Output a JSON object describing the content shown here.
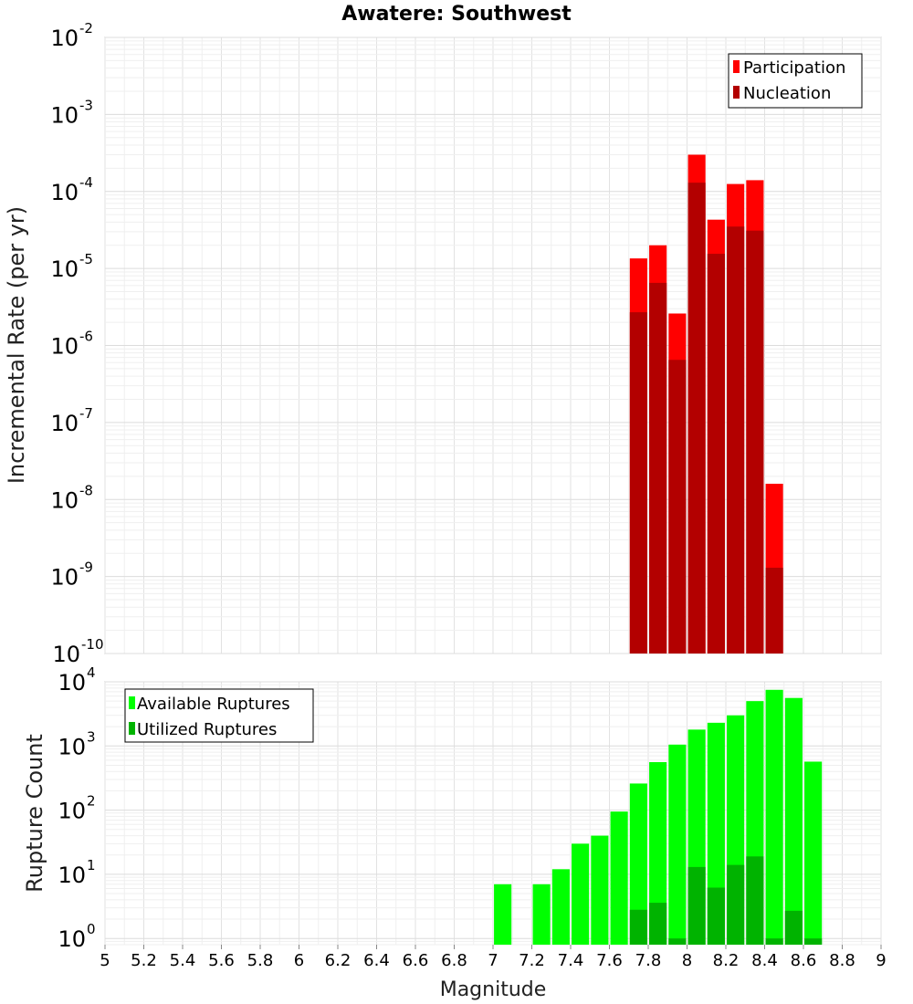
{
  "chart_data": [
    {
      "type": "bar",
      "title": "Awatere: Southwest",
      "xlabel": "",
      "ylabel": "Incremental Rate (per yr)",
      "y_scale": "log",
      "ylim": [
        1e-10,
        0.01
      ],
      "xlim": [
        5,
        9
      ],
      "grid": true,
      "legend_position": "top-right",
      "x": [
        7.75,
        7.85,
        7.95,
        8.05,
        8.15,
        8.25,
        8.35,
        8.45
      ],
      "series": [
        {
          "name": "Participation",
          "color": "#ff0000",
          "values": [
            1.35e-05,
            2e-05,
            2.6e-06,
            0.0003,
            4.3e-05,
            0.000125,
            0.00014,
            1.6e-08
          ]
        },
        {
          "name": "Nucleation",
          "color": "#b30000",
          "values": [
            2.7e-06,
            6.5e-06,
            6.5e-07,
            0.00013,
            1.55e-05,
            3.5e-05,
            3.1e-05,
            1.3e-09
          ]
        }
      ],
      "y_ticks": [
        {
          "base": "10",
          "exp": "-2",
          "value": 0.01
        },
        {
          "base": "10",
          "exp": "-3",
          "value": 0.001
        },
        {
          "base": "10",
          "exp": "-4",
          "value": 0.0001
        },
        {
          "base": "10",
          "exp": "-5",
          "value": 1e-05
        },
        {
          "base": "10",
          "exp": "-6",
          "value": 1e-06
        },
        {
          "base": "10",
          "exp": "-7",
          "value": 1e-07
        },
        {
          "base": "10",
          "exp": "-8",
          "value": 1e-08
        },
        {
          "base": "10",
          "exp": "-9",
          "value": 1e-09
        },
        {
          "base": "10",
          "exp": "-10",
          "value": 1e-10
        }
      ]
    },
    {
      "type": "bar",
      "title": "",
      "xlabel": "Magnitude",
      "ylabel": "Rupture Count",
      "y_scale": "log",
      "ylim": [
        0.8,
        10000
      ],
      "xlim": [
        5,
        9
      ],
      "grid": true,
      "legend_position": "top-left",
      "x": [
        7.05,
        7.15,
        7.25,
        7.35,
        7.45,
        7.55,
        7.65,
        7.75,
        7.85,
        7.95,
        8.05,
        8.15,
        8.25,
        8.35,
        8.45,
        8.55,
        8.65
      ],
      "series": [
        {
          "name": "Available Ruptures",
          "color": "#00ff00",
          "values": [
            7,
            0,
            7,
            12,
            30,
            40,
            95,
            260,
            560,
            1050,
            1800,
            2300,
            3000,
            5000,
            7500,
            5600,
            570
          ]
        },
        {
          "name": "Utilized Ruptures",
          "color": "#00b300",
          "values": [
            0,
            0,
            0,
            0,
            0,
            0,
            0,
            2.8,
            3.6,
            1,
            13,
            6.2,
            14,
            19,
            1,
            2.7,
            1
          ]
        }
      ],
      "y_ticks": [
        {
          "base": "10",
          "exp": "4",
          "value": 10000
        },
        {
          "base": "10",
          "exp": "3",
          "value": 1000
        },
        {
          "base": "10",
          "exp": "2",
          "value": 100
        },
        {
          "base": "10",
          "exp": "1",
          "value": 10
        },
        {
          "base": "10",
          "exp": "0",
          "value": 1
        }
      ],
      "x_ticks": [
        "5",
        "5.2",
        "5.4",
        "5.6",
        "5.8",
        "6",
        "6.2",
        "6.4",
        "6.6",
        "6.8",
        "7",
        "7.2",
        "7.4",
        "7.6",
        "7.8",
        "8",
        "8.2",
        "8.4",
        "8.6",
        "8.8",
        "9"
      ]
    }
  ]
}
